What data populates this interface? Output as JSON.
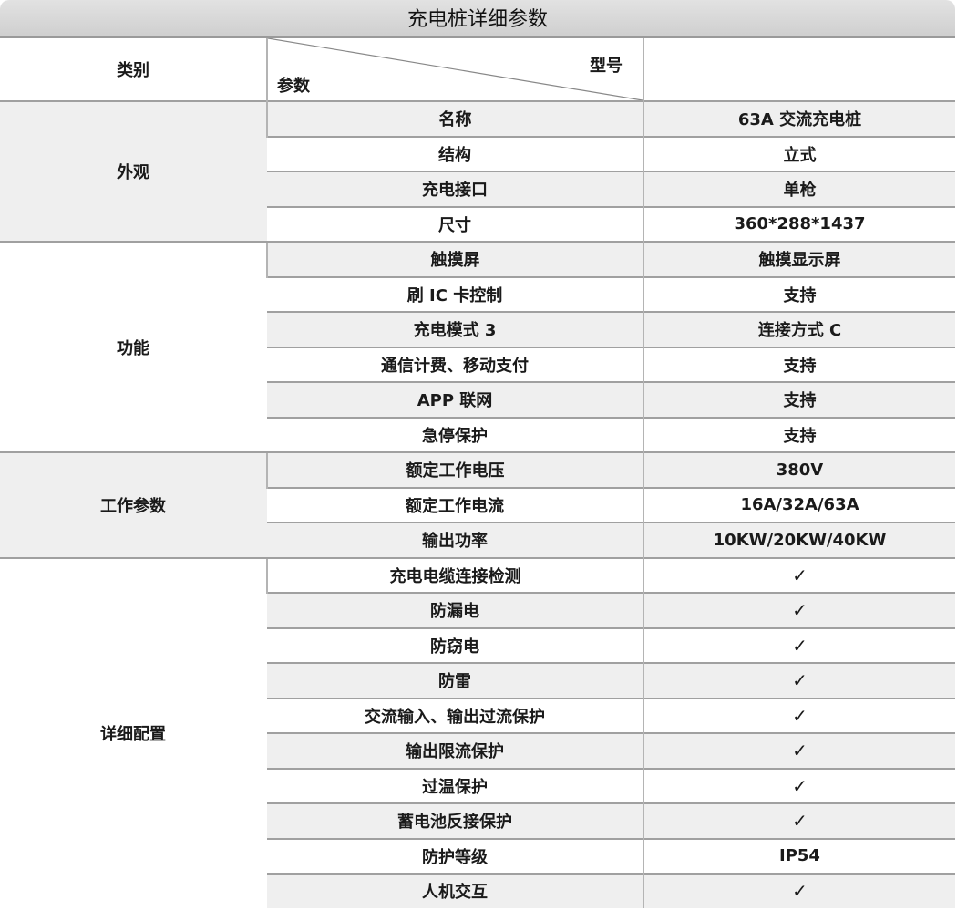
{
  "title": "充电桩详细参数",
  "header": {
    "category": "类别",
    "param": "参数",
    "model": "型号",
    "model_value": ""
  },
  "groups": [
    {
      "name": "外观",
      "rows": [
        [
          "名称",
          "63A 交流充电桩"
        ],
        [
          "结构",
          "立式"
        ],
        [
          "充电接口",
          "单枪"
        ],
        [
          "尺寸",
          "360*288*1437"
        ]
      ]
    },
    {
      "name": "功能",
      "rows": [
        [
          "触摸屏",
          "触摸显示屏"
        ],
        [
          "刷 IC 卡控制",
          "支持"
        ],
        [
          "充电模式 3",
          "连接方式 C"
        ],
        [
          "通信计费、移动支付",
          "支持"
        ],
        [
          "APP 联网",
          "支持"
        ],
        [
          "急停保护",
          "支持"
        ]
      ]
    },
    {
      "name": "工作参数",
      "rows": [
        [
          "额定工作电压",
          "380V"
        ],
        [
          "额定工作电流",
          "16A/32A/63A"
        ],
        [
          "输出功率",
          "10KW/20KW/40KW"
        ]
      ]
    },
    {
      "name": "详细配置",
      "rows": [
        [
          "充电电缆连接检测",
          "✓"
        ],
        [
          "防漏电",
          "✓"
        ],
        [
          "防窃电",
          "✓"
        ],
        [
          "防雷",
          "✓"
        ],
        [
          "交流输入、输出过流保护",
          "✓"
        ],
        [
          "输出限流保护",
          "✓"
        ],
        [
          "过温保护",
          "✓"
        ],
        [
          "蓄电池反接保护",
          "✓"
        ],
        [
          "防护等级",
          "IP54"
        ],
        [
          "人机交互",
          "✓"
        ]
      ]
    }
  ],
  "colors": {
    "stripe": "#efefef",
    "title_bar": "#d6d6d6",
    "border": "#a0a0a0"
  }
}
